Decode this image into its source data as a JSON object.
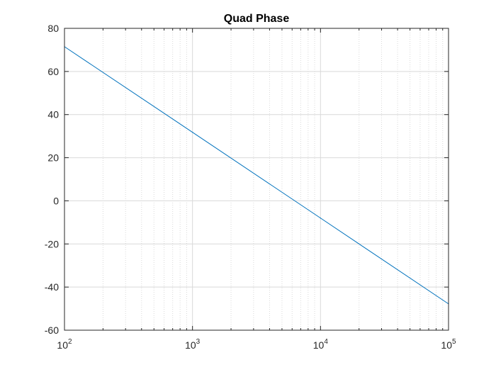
{
  "chart_data": {
    "type": "line",
    "title": "Quad Phase",
    "xlabel": "",
    "ylabel": "",
    "xscale": "log",
    "xlim": [
      100,
      100000
    ],
    "ylim": [
      -60,
      80
    ],
    "grid": "on (major and minor)",
    "legend": "none",
    "colors": {
      "line": "#0072bd",
      "axis": "#262626",
      "grid": "#d9d9d9",
      "background": "#ffffff"
    },
    "x_ticks": [
      {
        "base": "10",
        "exp": "2",
        "value": 100
      },
      {
        "base": "10",
        "exp": "3",
        "value": 1000
      },
      {
        "base": "10",
        "exp": "4",
        "value": 10000
      },
      {
        "base": "10",
        "exp": "5",
        "value": 100000
      }
    ],
    "y_ticks": [
      "80",
      "60",
      "40",
      "20",
      "0",
      "-20",
      "-40",
      "-60"
    ],
    "series": [
      {
        "x": [
          100,
          1000,
          10000,
          100000
        ],
        "y": [
          71.5,
          31.8,
          -8.0,
          -47.8
        ]
      }
    ]
  }
}
